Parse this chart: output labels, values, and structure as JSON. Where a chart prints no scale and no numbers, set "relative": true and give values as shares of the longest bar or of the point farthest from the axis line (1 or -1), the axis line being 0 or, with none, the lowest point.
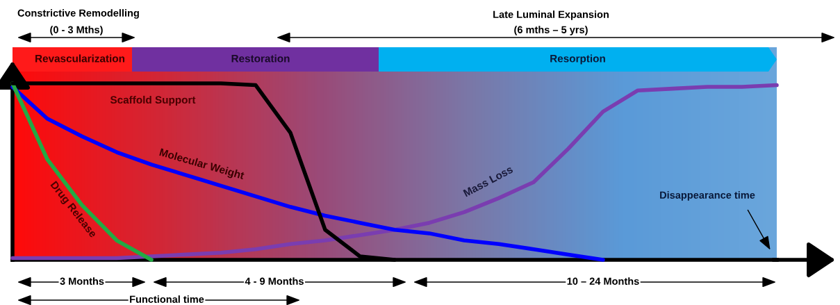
{
  "chart_data": {
    "type": "line",
    "relative": true,
    "marker": "none",
    "line_style": "solid",
    "categories": [
      null,
      null,
      null,
      null,
      null,
      null,
      null,
      null,
      null,
      null,
      null,
      null,
      null,
      null,
      null,
      null,
      null,
      null,
      null,
      null,
      null,
      null,
      null
    ],
    "series": [
      {
        "name": "Scaffold Support",
        "color": "#000000",
        "values": [
          1.0,
          1.0,
          1.0,
          1.0,
          1.0,
          1.0,
          1.0,
          0.99,
          0.72,
          0.17,
          0.02,
          0,
          null,
          null,
          null,
          null,
          null,
          null,
          null,
          null,
          null,
          null,
          null
        ]
      },
      {
        "name": "Molecular Weight",
        "color": "#0000ff",
        "values": [
          0.98,
          0.8,
          0.7,
          0.61,
          0.54,
          0.48,
          0.42,
          0.36,
          0.3,
          0.25,
          0.21,
          0.17,
          0.15,
          0.11,
          0.09,
          0.06,
          0.03,
          0,
          null,
          null,
          null,
          null,
          null
        ]
      },
      {
        "name": "Drug Release",
        "color": "#22aa44",
        "values": [
          1.0,
          0.57,
          0.31,
          0.11,
          0,
          null,
          null,
          null,
          null,
          null,
          null,
          null,
          null,
          null,
          null,
          null,
          null,
          null,
          null,
          null,
          null,
          null,
          null
        ]
      },
      {
        "name": "Mass Loss",
        "color": "#7a3db0",
        "values": [
          0.01,
          0.01,
          0.01,
          0.01,
          0.02,
          0.03,
          0.04,
          0.06,
          0.09,
          0.11,
          0.14,
          0.17,
          0.21,
          0.27,
          0.35,
          0.44,
          0.63,
          0.84,
          0.96,
          0.97,
          0.98,
          0.98,
          0.99
        ]
      }
    ],
    "annotations": [
      "Constrictive Remodelling",
      "(0 - 3 Mths)",
      "Late Luminal Expansion",
      "(6 mths – 5 yrs)",
      "Revascularization",
      "Restoration",
      "Resorption",
      "3 Months",
      "4 - 9 Months",
      "10 – 24 Months",
      "Functional time",
      "Disappearance time"
    ]
  }
}
